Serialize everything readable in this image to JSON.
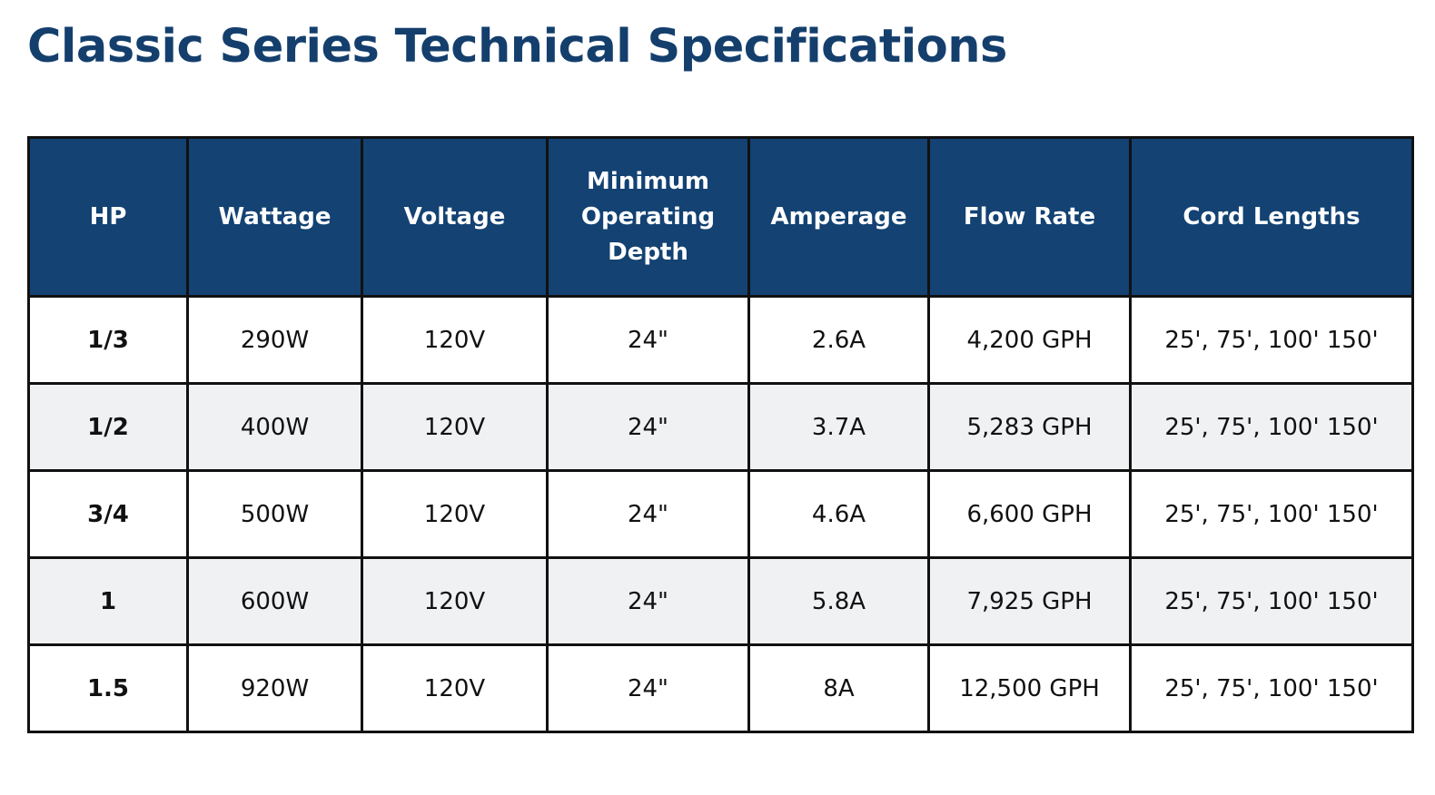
{
  "title": "Classic Series Technical Specifications",
  "colors": {
    "title": "#143f6d",
    "header_bg": "#134273",
    "header_text": "#ffffff",
    "stripe": "#f0f1f3",
    "border": "#111111"
  },
  "table": {
    "headers": {
      "hp": "HP",
      "wattage": "Wattage",
      "voltage": "Voltage",
      "depth": "Minimum Operating Depth",
      "amperage": "Amperage",
      "flow": "Flow Rate",
      "cord": "Cord Lengths"
    },
    "rows": [
      {
        "hp": "1/3",
        "wattage": "290W",
        "voltage": "120V",
        "depth": "24\"",
        "amperage": "2.6A",
        "flow": "4,200 GPH",
        "cord": "25', 75', 100' 150'"
      },
      {
        "hp": "1/2",
        "wattage": "400W",
        "voltage": "120V",
        "depth": "24\"",
        "amperage": "3.7A",
        "flow": "5,283 GPH",
        "cord": "25', 75', 100' 150'"
      },
      {
        "hp": "3/4",
        "wattage": "500W",
        "voltage": "120V",
        "depth": "24\"",
        "amperage": "4.6A",
        "flow": "6,600 GPH",
        "cord": "25', 75', 100' 150'"
      },
      {
        "hp": "1",
        "wattage": "600W",
        "voltage": "120V",
        "depth": "24\"",
        "amperage": "5.8A",
        "flow": "7,925 GPH",
        "cord": "25', 75', 100' 150'"
      },
      {
        "hp": "1.5",
        "wattage": "920W",
        "voltage": "120V",
        "depth": "24\"",
        "amperage": "8A",
        "flow": "12,500 GPH",
        "cord": "25', 75', 100' 150'"
      }
    ]
  }
}
